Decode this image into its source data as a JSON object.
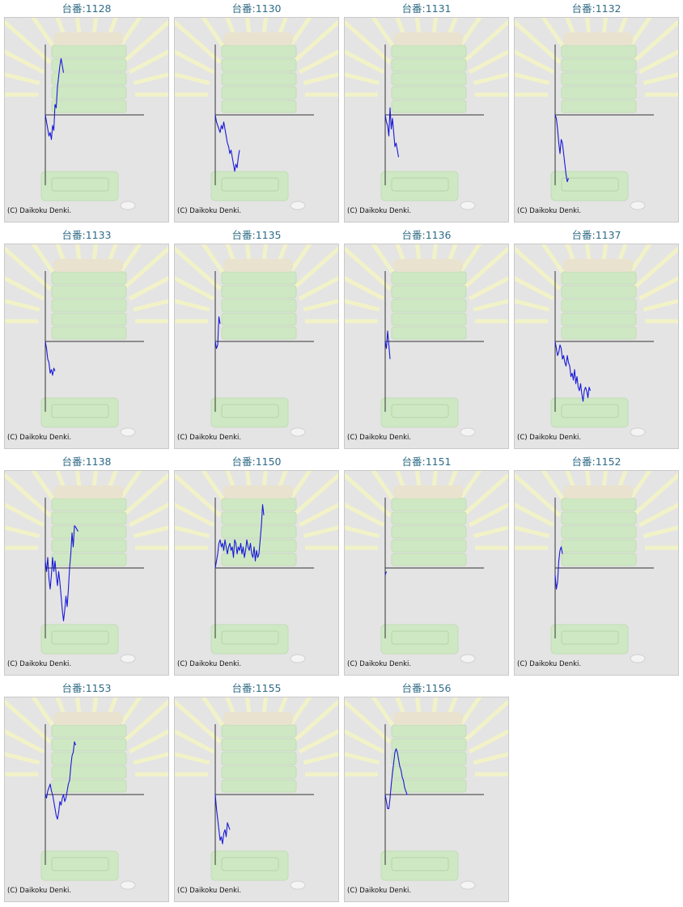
{
  "colors": {
    "title": "#2f6b86",
    "line": "#1a1ad8",
    "axis": "#333333",
    "panel_bg": "#e4e4e4",
    "watermark_green": "#cfe8c4",
    "watermark_rays": "#f2f2c8"
  },
  "credit_text": "(C) Daikoku Denki.",
  "chart_data": [
    {
      "type": "line",
      "title": "台番:1128",
      "x": [
        0,
        1,
        2,
        3,
        4,
        5,
        6,
        7,
        8,
        9,
        10,
        11,
        12,
        13,
        14,
        15
      ],
      "y": [
        0,
        -10,
        -20,
        -30,
        -25,
        -35,
        -15,
        -22,
        15,
        10,
        40,
        55,
        70,
        80,
        70,
        60
      ]
    },
    {
      "type": "line",
      "title": "台番:1130",
      "x": [
        0,
        1,
        2,
        3,
        4,
        5,
        6,
        7,
        8,
        9,
        10,
        11,
        12,
        13,
        14,
        15,
        16,
        17,
        18,
        19,
        20
      ],
      "y": [
        0,
        -10,
        -15,
        -20,
        -25,
        -15,
        -20,
        -10,
        -20,
        -30,
        -40,
        -45,
        -55,
        -50,
        -60,
        -70,
        -80,
        -70,
        -75,
        -60,
        -50
      ]
    },
    {
      "type": "line",
      "title": "台番:1131",
      "x": [
        0,
        1,
        2,
        3,
        4,
        5,
        6,
        7,
        8,
        9,
        10,
        11
      ],
      "y": [
        0,
        -10,
        -15,
        -30,
        10,
        -20,
        -5,
        -25,
        -45,
        -40,
        -50,
        -60
      ]
    },
    {
      "type": "line",
      "title": "台番:1132",
      "x": [
        0,
        1,
        2,
        3,
        4,
        5,
        6,
        7,
        8,
        9,
        10,
        11
      ],
      "y": [
        0,
        -5,
        -20,
        -40,
        -55,
        -35,
        -40,
        -55,
        -70,
        -85,
        -95,
        -90
      ]
    },
    {
      "type": "line",
      "title": "台番:1133",
      "x": [
        0,
        1,
        2,
        3,
        4,
        5,
        6,
        7,
        8
      ],
      "y": [
        0,
        -10,
        -25,
        -30,
        -45,
        -40,
        -48,
        -38,
        -42
      ]
    },
    {
      "type": "line",
      "title": "台番:1135",
      "x": [
        0,
        1,
        2,
        3,
        4
      ],
      "y": [
        0,
        -10,
        -5,
        35,
        25
      ]
    },
    {
      "type": "line",
      "title": "台番:1136",
      "x": [
        0,
        1,
        2,
        3,
        4
      ],
      "y": [
        0,
        -10,
        15,
        -5,
        -25
      ]
    },
    {
      "type": "line",
      "title": "台番:1137",
      "x": [
        0,
        1,
        2,
        3,
        4,
        5,
        6,
        7,
        8,
        9,
        10,
        11,
        12,
        13,
        14,
        15,
        16,
        17,
        18,
        19,
        20,
        21,
        22,
        23,
        24,
        25,
        26,
        27,
        28,
        29
      ],
      "y": [
        0,
        -10,
        -20,
        -15,
        -5,
        -10,
        -25,
        -20,
        -30,
        -35,
        -20,
        -30,
        -35,
        -50,
        -45,
        -55,
        -40,
        -60,
        -50,
        -65,
        -70,
        -60,
        -75,
        -85,
        -70,
        -65,
        -70,
        -80,
        -65,
        -70
      ]
    },
    {
      "type": "line",
      "title": "台番:1138",
      "x": [
        0,
        1,
        2,
        3,
        4,
        5,
        6,
        7,
        8,
        9,
        10,
        11,
        12,
        13,
        14,
        15,
        16,
        17,
        18,
        19,
        20,
        21,
        22,
        23,
        24,
        25,
        26,
        27
      ],
      "y": [
        10,
        -5,
        15,
        -15,
        -30,
        -10,
        15,
        -5,
        10,
        -10,
        -25,
        -5,
        -20,
        -40,
        -60,
        -75,
        -60,
        -40,
        -55,
        -30,
        0,
        20,
        50,
        30,
        60,
        58,
        55,
        52
      ]
    },
    {
      "type": "line",
      "title": "台番:1150",
      "x": [
        0,
        1,
        2,
        3,
        4,
        5,
        6,
        7,
        8,
        9,
        10,
        11,
        12,
        13,
        14,
        15,
        16,
        17,
        18,
        19,
        20,
        21,
        22,
        23,
        24,
        25,
        26,
        27,
        28,
        29,
        30,
        31,
        32,
        33,
        34,
        35,
        36,
        37,
        38,
        39,
        40
      ],
      "y": [
        0,
        10,
        20,
        35,
        40,
        30,
        35,
        25,
        40,
        30,
        20,
        30,
        35,
        25,
        30,
        15,
        40,
        35,
        20,
        30,
        25,
        35,
        20,
        30,
        15,
        25,
        40,
        30,
        25,
        35,
        20,
        15,
        30,
        10,
        25,
        15,
        20,
        40,
        60,
        90,
        75
      ]
    },
    {
      "type": "line",
      "title": "台番:1151",
      "x": [
        0,
        1
      ],
      "y": [
        -10,
        -5
      ]
    },
    {
      "type": "line",
      "title": "台番:1152",
      "x": [
        0,
        1,
        2,
        3,
        4,
        5,
        6
      ],
      "y": [
        -10,
        -30,
        -20,
        10,
        25,
        30,
        20
      ]
    },
    {
      "type": "line",
      "title": "台番:1153",
      "x": [
        0,
        1,
        2,
        3,
        4,
        5,
        6,
        7,
        8,
        9,
        10,
        11,
        12,
        13,
        14,
        15,
        16,
        17,
        18,
        19,
        20,
        21,
        22,
        23,
        24,
        25
      ],
      "y": [
        0,
        -5,
        5,
        10,
        15,
        5,
        0,
        -10,
        -20,
        -30,
        -35,
        -25,
        -10,
        -15,
        -5,
        0,
        -10,
        -5,
        5,
        15,
        20,
        40,
        55,
        60,
        75,
        70
      ]
    },
    {
      "type": "line",
      "title": "台番:1155",
      "x": [
        0,
        1,
        2,
        3,
        4,
        5,
        6,
        7,
        8,
        9,
        10,
        11,
        12
      ],
      "y": [
        0,
        -20,
        -35,
        -50,
        -65,
        -60,
        -70,
        -55,
        -50,
        -60,
        -40,
        -45,
        -50
      ]
    },
    {
      "type": "line",
      "title": "台番:1156",
      "x": [
        0,
        1,
        2,
        3,
        4,
        5,
        6,
        7,
        8,
        9,
        10,
        11,
        12,
        13,
        14,
        15,
        16,
        17,
        18,
        19
      ],
      "y": [
        0,
        -10,
        -20,
        -20,
        -5,
        15,
        30,
        45,
        60,
        65,
        60,
        50,
        40,
        35,
        25,
        20,
        10,
        5,
        0,
        0
      ]
    }
  ]
}
